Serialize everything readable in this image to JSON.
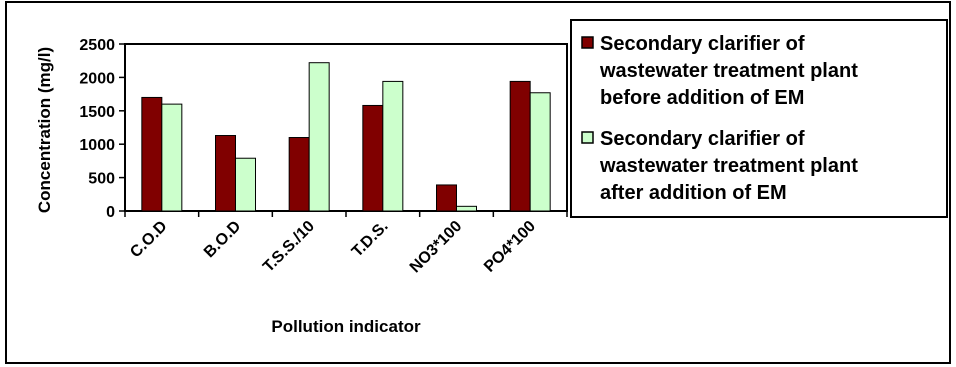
{
  "chart_data": {
    "type": "bar",
    "categories": [
      "C.O.D",
      "B.O.D",
      "T.S.S./10",
      "T.D.S.",
      "NO3*100",
      "PO4*100"
    ],
    "series": [
      {
        "name": "Secondary clarifier of wastewater treatment plant before addition of EM",
        "color": "#800000",
        "values": [
          1700,
          1130,
          1100,
          1580,
          390,
          1940
        ]
      },
      {
        "name": "Secondary clarifier of wastewater treatment plant after addition of EM",
        "color": "#CCFFCC",
        "values": [
          1600,
          790,
          2220,
          1940,
          70,
          1770
        ]
      }
    ],
    "xlabel": "Pollution indicator",
    "ylabel": "Concentration (mg/l)",
    "ylim": [
      0,
      2500
    ],
    "yticks": [
      0,
      500,
      1000,
      1500,
      2000,
      2500
    ],
    "grid": false,
    "legend_position": "right",
    "legend_lines": [
      [
        "Secondary clarifier of",
        "wastewater treatment plant",
        "before addition of EM"
      ],
      [
        "Secondary clarifier of",
        "wastewater treatment plant",
        "after addition of EM"
      ]
    ]
  }
}
